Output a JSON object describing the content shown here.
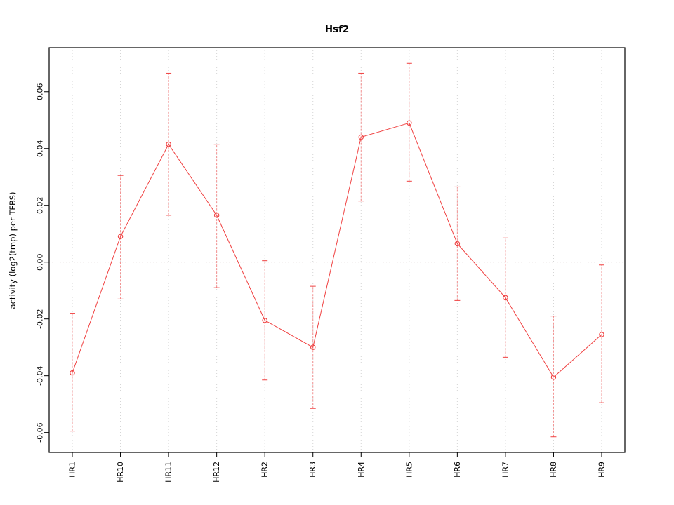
{
  "chart_data": {
    "type": "line",
    "title": "Hsf2",
    "xlabel": "",
    "ylabel": "activity (log2(tmp) per TFBS)",
    "categories": [
      "HR1",
      "HR10",
      "HR11",
      "HR12",
      "HR2",
      "HR3",
      "HR4",
      "HR5",
      "HR6",
      "HR7",
      "HR8",
      "HR9"
    ],
    "values": [
      -0.039,
      0.009,
      0.0415,
      0.0165,
      -0.0205,
      -0.03,
      0.044,
      0.049,
      0.0065,
      -0.0125,
      -0.0405,
      -0.0255
    ],
    "error_low": [
      -0.0595,
      -0.013,
      0.0165,
      -0.009,
      -0.0415,
      -0.0515,
      0.0215,
      0.0285,
      -0.0135,
      -0.0335,
      -0.0615,
      -0.0495
    ],
    "error_high": [
      -0.018,
      0.0305,
      0.0665,
      0.0415,
      0.0005,
      -0.0085,
      0.0665,
      0.07,
      0.0265,
      0.0085,
      -0.019,
      -0.001
    ],
    "ylim": [
      -0.067,
      0.0755
    ],
    "yticks": [
      -0.06,
      -0.04,
      -0.02,
      0,
      0.02,
      0.04,
      0.06
    ],
    "ytick_labels": [
      "-0.06",
      "-0.04",
      "-0.02",
      "0.00",
      "0.02",
      "0.04",
      "0.06"
    ],
    "grid": true,
    "legend": "none",
    "colors": {
      "series": "#f04040",
      "error": "#f29090",
      "grid": "#d4d4d4",
      "zero_line": "#dcd0d0",
      "axis": "#000000",
      "background": "#ffffff"
    }
  }
}
